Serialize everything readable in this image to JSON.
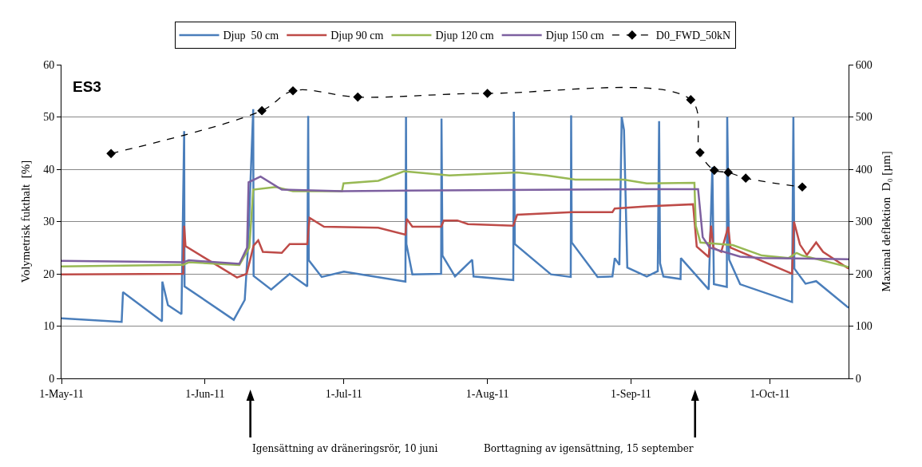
{
  "chart_data": {
    "type": "line",
    "ylabel": "Volymetrisk fukthalt  [%]",
    "y2label": "Maximal deflektion  D₀ [µm]",
    "annotations": [
      "ES3",
      "Igensättning av dräneringsrör, 10 juni",
      "Borttagning av igensättning, 15 september"
    ],
    "xlim": [
      "2011-05-01",
      "2011-10-18"
    ],
    "xticks": [
      {
        "value": "2011-05-01",
        "label": "1-May-11"
      },
      {
        "value": "2011-06-01",
        "label": "1-Jun-11"
      },
      {
        "value": "2011-07-01",
        "label": "1-Jul-11"
      },
      {
        "value": "2011-08-01",
        "label": "1-Aug-11"
      },
      {
        "value": "2011-09-01",
        "label": "1-Sep-11"
      },
      {
        "value": "2011-10-01",
        "label": "1-Oct-11"
      }
    ],
    "ylim": [
      0,
      60
    ],
    "yticks": [
      0,
      10,
      20,
      30,
      40,
      50,
      60
    ],
    "y2lim": [
      0,
      600
    ],
    "y2ticks": [
      0,
      100,
      200,
      300,
      400,
      500,
      600
    ],
    "grid": "y",
    "legend": "top",
    "marker": "none",
    "line_style": "solid",
    "series": [
      {
        "name": "Djup  50 cm",
        "color": "#4a7ebb",
        "x": [
          "2011-05-01",
          "2011-05-14",
          "2011-05-14T07:00",
          "2011-05-22T17:00",
          "2011-05-22T19:00",
          "2011-05-24",
          "2011-05-26T22:00",
          "2011-05-27T12:00",
          "2011-05-27T14:00",
          "2011-06-07T05:00",
          "2011-06-09T14:00",
          "2011-06-10T07:00",
          "2011-06-11T10:00",
          "2011-06-11T12:00",
          "2011-06-15T07:00",
          "2011-06-19T07:00",
          "2011-06-23T02:00",
          "2011-06-23T07:00",
          "2011-06-23T10:00",
          "2011-06-26T05:00",
          "2011-07-01",
          "2011-07-14T07:00",
          "2011-07-14T10:00",
          "2011-07-14T12:00",
          "2011-07-15T19:00",
          "2011-07-22",
          "2011-07-22T02:00",
          "2011-07-22T07:00",
          "2011-07-25",
          "2011-07-28T17:00",
          "2011-07-29",
          "2011-08-06T14:00",
          "2011-08-06T17:00",
          "2011-08-06T22:00",
          "2011-08-14T17:00",
          "2011-08-19",
          "2011-08-19T02:00",
          "2011-08-19T05:00",
          "2011-08-24T19:00",
          "2011-08-28",
          "2011-08-28T12:00",
          "2011-08-29T12:00",
          "2011-08-30",
          "2011-08-30T12:00",
          "2011-08-31T05:00",
          "2011-09-04T10:00",
          "2011-09-06T19:00",
          "2011-09-07T02:00",
          "2011-09-07T07:00",
          "2011-09-08",
          "2011-09-11T17:00",
          "2011-09-11T19:00",
          "2011-09-17T19:00",
          "2011-09-18T14:00",
          "2011-09-18T22:00",
          "2011-09-21T17:00",
          "2011-09-21T19:00",
          "2011-09-22T05:00",
          "2011-09-24T14:00",
          "2011-10-05T19:00",
          "2011-10-06T02:00",
          "2011-10-06T07:00",
          "2011-10-08T17:00",
          "2011-10-11",
          "2011-10-18"
        ],
        "values": [
          11.5,
          10.8,
          16.5,
          10.9,
          18.5,
          14,
          12.3,
          47.3,
          17.6,
          11.2,
          15,
          25,
          51.5,
          19.6,
          17,
          20,
          17.6,
          50.2,
          22.6,
          19.4,
          20.4,
          18.5,
          50,
          25.7,
          19.9,
          20,
          49.7,
          23.5,
          19.5,
          22.7,
          19.5,
          18.8,
          51,
          25.7,
          19.9,
          19.4,
          50.3,
          26,
          19.4,
          19.5,
          23,
          21.7,
          50,
          47.5,
          21.2,
          19.5,
          20.5,
          49.2,
          22,
          19.5,
          19,
          23,
          17,
          40.4,
          18,
          17.5,
          50,
          22.7,
          18,
          14.6,
          50,
          21,
          18.1,
          18.6,
          13.5
        ]
      },
      {
        "name": "Djup 90 cm",
        "color": "#be4b48",
        "x": [
          "2011-05-01",
          "2011-05-27T07:00",
          "2011-05-27T12:00",
          "2011-05-27T19:00",
          "2011-06-07T22:00",
          "2011-06-10",
          "2011-06-11T12:00",
          "2011-06-12T12:00",
          "2011-06-13T12:00",
          "2011-06-17T14:00",
          "2011-06-19T07:00",
          "2011-06-23T02:00",
          "2011-06-23T14:00",
          "2011-06-26T17:00",
          "2011-07-08T10:00",
          "2011-07-14T07:00",
          "2011-07-14T14:00",
          "2011-07-15T19:00",
          "2011-07-22",
          "2011-07-22T14:00",
          "2011-07-25T12:00",
          "2011-07-27T19:00",
          "2011-08-06T14:00",
          "2011-08-07T10:00",
          "2011-08-19T07:00",
          "2011-08-28",
          "2011-08-28T12:00",
          "2011-09-04T10:00",
          "2011-09-14T10:00",
          "2011-09-15T05:00",
          "2011-09-17T19:00",
          "2011-09-18T07:00",
          "2011-09-18T19:00",
          "2011-09-20T12:00",
          "2011-09-22",
          "2011-09-22T12:00",
          "2011-10-05T19:00",
          "2011-10-06T05:00",
          "2011-10-07T12:00",
          "2011-10-09",
          "2011-10-11",
          "2011-10-12T12:00",
          "2011-10-18"
        ],
        "values": [
          19.9,
          20,
          29.2,
          25.3,
          19.3,
          20,
          25.4,
          26.4,
          24.2,
          24,
          25.7,
          25.7,
          30.7,
          29,
          28.8,
          27.5,
          30.5,
          29,
          29,
          30.2,
          30.2,
          29.5,
          29.2,
          31.3,
          31.8,
          31.8,
          32.5,
          32.9,
          33.3,
          25.2,
          23.2,
          29.2,
          25,
          24.2,
          29,
          25,
          20,
          30,
          25.6,
          23.6,
          26,
          24.2,
          21
        ]
      },
      {
        "name": "Djup 120 cm",
        "color": "#98b954",
        "x": [
          "2011-05-01",
          "2011-05-27T07:00",
          "2011-05-28T12:00",
          "2011-06-08T10:00",
          "2011-06-10T14:00",
          "2011-06-11T10:00",
          "2011-06-16T07:00",
          "2011-06-20",
          "2011-06-30T14:00",
          "2011-06-30T22:00",
          "2011-07-08T10:00",
          "2011-07-14",
          "2011-07-23T19:00",
          "2011-08-07T10:00",
          "2011-08-13T17:00",
          "2011-08-20",
          "2011-08-30T10:00",
          "2011-09-04T10:00",
          "2011-09-14T17:00",
          "2011-09-15",
          "2011-09-16",
          "2011-09-23",
          "2011-09-29T07:00",
          "2011-10-05",
          "2011-10-06T19:00",
          "2011-10-08",
          "2011-10-18"
        ],
        "values": [
          21.4,
          21.7,
          22.2,
          21.7,
          25,
          36.1,
          36.6,
          35.8,
          35.8,
          37.3,
          37.8,
          39.6,
          38.8,
          39.4,
          38.8,
          38,
          38,
          37.3,
          37.4,
          29.2,
          26,
          25.5,
          23.5,
          23,
          24,
          23.5,
          21.3
        ]
      },
      {
        "name": "Djup 150 cm",
        "color": "#7d60a0",
        "x": [
          "2011-05-01",
          "2011-05-27T07:00",
          "2011-05-28T12:00",
          "2011-06-08T10:00",
          "2011-06-10T02:00",
          "2011-06-10T10:00",
          "2011-06-13",
          "2011-06-17T14:00",
          "2011-06-30T14:00",
          "2011-07-28T17:00",
          "2011-08-19",
          "2011-09-04T10:00",
          "2011-09-15T12:00",
          "2011-09-16T12:00",
          "2011-09-18",
          "2011-09-24T14:00",
          "2011-09-29T07:00",
          "2011-10-18"
        ],
        "values": [
          22.5,
          22.2,
          22.6,
          21.9,
          25,
          37.5,
          38.6,
          36.1,
          35.8,
          36,
          36.1,
          36.2,
          36.2,
          27,
          25,
          23.3,
          23,
          22.8
        ]
      },
      {
        "name": "D0_FWD_50kN",
        "color": "#000000",
        "axis": "y2",
        "marker": "diamond",
        "line_style": "dashed",
        "x": [
          "2011-05-11T17:00",
          "2011-06-13T07:00",
          "2011-06-20",
          "2011-07-04",
          "2011-08-01",
          "2011-09-13T22:00",
          "2011-09-15T22:00",
          "2011-09-19",
          "2011-09-22",
          "2011-09-25T19:00",
          "2011-10-08"
        ],
        "values": [
          430,
          512,
          550,
          538,
          545,
          533,
          432,
          398,
          394,
          383,
          366
        ]
      }
    ]
  }
}
